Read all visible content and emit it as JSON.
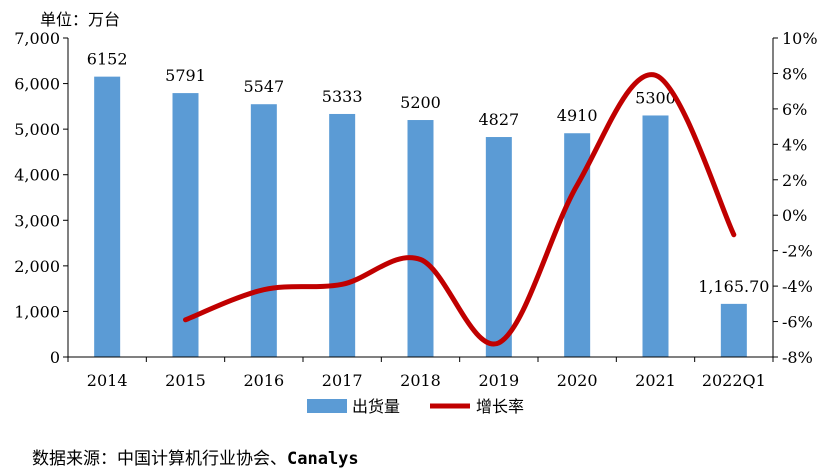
{
  "chart_data": {
    "type": "bar",
    "unit_label": "单位：万台",
    "categories": [
      "2014",
      "2015",
      "2016",
      "2017",
      "2018",
      "2019",
      "2020",
      "2021",
      "2022Q1"
    ],
    "series": [
      {
        "name": "出货量",
        "type": "bar",
        "axis": "left",
        "values": [
          6152,
          5791,
          5547,
          5333,
          5200,
          4827,
          4910,
          5300,
          1165.7
        ],
        "labels": [
          "6152",
          "5791",
          "5547",
          "5333",
          "5200",
          "4827",
          "4910",
          "5300",
          "1,165.70"
        ],
        "color": "#5b9bd5"
      },
      {
        "name": "增长率",
        "type": "line",
        "axis": "right",
        "values": [
          null,
          -5.9,
          -4.2,
          -3.9,
          -2.5,
          -7.2,
          1.7,
          7.9,
          -1.1
        ],
        "color": "#c00000"
      }
    ],
    "y_left": {
      "min": 0,
      "max": 7000,
      "ticks": [
        "0",
        "1,000",
        "2,000",
        "3,000",
        "4,000",
        "5,000",
        "6,000",
        "7,000"
      ]
    },
    "y_right": {
      "min": -8,
      "max": 10,
      "ticks": [
        "-8%",
        "-6%",
        "-4%",
        "-2%",
        "0%",
        "2%",
        "4%",
        "6%",
        "8%",
        "10%"
      ]
    },
    "legend": {
      "placement": "bottom"
    },
    "grid": false
  },
  "source": {
    "prefix": "数据来源：中国计算机行业协会、",
    "brand": "Canalys"
  }
}
